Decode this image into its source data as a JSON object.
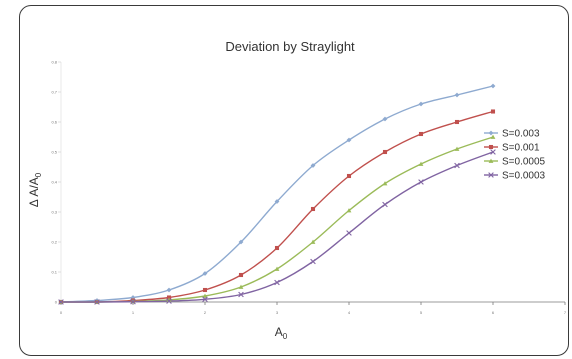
{
  "chart_data": {
    "type": "line",
    "title": "Deviation by Straylight",
    "xlabel": "A",
    "xlabel_sub": "0",
    "ylabel": "Δ A/A",
    "ylabel_sub": "0",
    "x_ticks": [
      "0",
      "1",
      "2",
      "3",
      "4",
      "5",
      "6",
      "7"
    ],
    "y_ticks": [
      "0",
      "0.1",
      "0.2",
      "0.3",
      "0.4",
      "0.5",
      "0.6",
      "0.7",
      "0.8"
    ],
    "xlim": [
      0,
      7
    ],
    "ylim": [
      0,
      0.8
    ],
    "grid": false,
    "legend_position": "right",
    "series": [
      {
        "name": "S=0.003",
        "color": "#8eaad0",
        "marker": "diamond",
        "x": [
          0,
          0.5,
          1,
          1.5,
          2,
          2.5,
          3,
          3.5,
          4,
          4.5,
          5,
          5.5,
          6
        ],
        "y": [
          0.0,
          0.005,
          0.015,
          0.04,
          0.095,
          0.2,
          0.335,
          0.455,
          0.54,
          0.61,
          0.66,
          0.69,
          0.72
        ]
      },
      {
        "name": "S=0.001",
        "color": "#c0504d",
        "marker": "square",
        "x": [
          0,
          0.5,
          1,
          1.5,
          2,
          2.5,
          3,
          3.5,
          4,
          4.5,
          5,
          5.5,
          6
        ],
        "y": [
          0.0,
          0.0,
          0.005,
          0.015,
          0.04,
          0.09,
          0.18,
          0.31,
          0.42,
          0.5,
          0.56,
          0.6,
          0.635
        ]
      },
      {
        "name": "S=0.0005",
        "color": "#9bbb59",
        "marker": "triangle",
        "x": [
          0,
          0.5,
          1,
          1.5,
          2,
          2.5,
          3,
          3.5,
          4,
          4.5,
          5,
          5.5,
          6
        ],
        "y": [
          0.0,
          0.0,
          0.002,
          0.007,
          0.02,
          0.05,
          0.11,
          0.2,
          0.305,
          0.395,
          0.46,
          0.51,
          0.55
        ]
      },
      {
        "name": "S=0.0003",
        "color": "#8064a2",
        "marker": "x",
        "x": [
          0,
          0.5,
          1,
          1.5,
          2,
          2.5,
          3,
          3.5,
          4,
          4.5,
          5,
          5.5,
          6
        ],
        "y": [
          0.0,
          0.0,
          0.001,
          0.003,
          0.009,
          0.025,
          0.065,
          0.135,
          0.23,
          0.325,
          0.4,
          0.455,
          0.5
        ]
      }
    ]
  }
}
